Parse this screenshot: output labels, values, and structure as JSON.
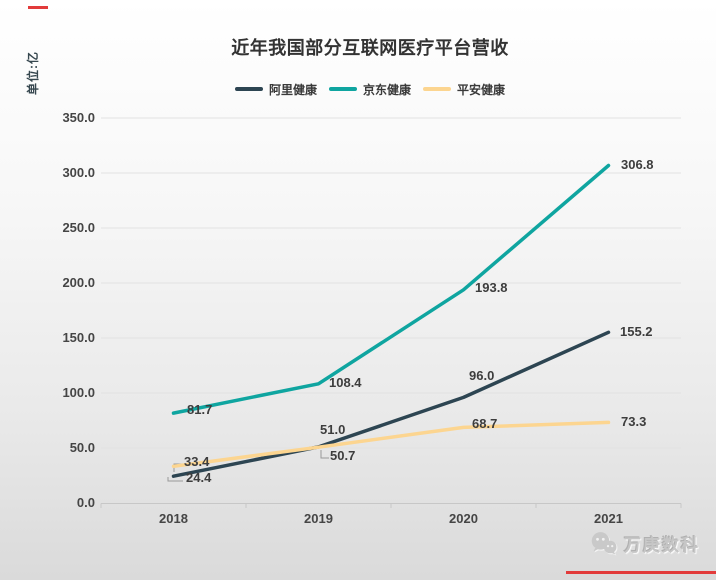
{
  "page": {
    "unit_label": "单位:亿",
    "watermark": "万庚数科",
    "accent_color": "#e23b3b"
  },
  "chart_data": {
    "type": "line",
    "title": "近年我国部分互联网医疗平台营收",
    "categories": [
      "2018",
      "2019",
      "2020",
      "2021"
    ],
    "series": [
      {
        "name": "阿里健康",
        "color": "#2d4552",
        "values": [
          24.4,
          51.0,
          96.0,
          155.2
        ]
      },
      {
        "name": "京东健康",
        "color": "#0fa5a0",
        "values": [
          81.7,
          108.4,
          193.8,
          306.8
        ]
      },
      {
        "name": "平安健康",
        "color": "#fcd590",
        "values": [
          33.4,
          50.7,
          68.7,
          73.3
        ]
      }
    ],
    "ylabel": "单位:亿",
    "ylim": [
      0,
      350
    ],
    "ytick_step": 50,
    "yticks": [
      "350.0",
      "300.0",
      "250.0",
      "200.0",
      "150.0",
      "100.0",
      "50.0",
      "0.0"
    ],
    "grid": true,
    "legend_position": "top",
    "data_labels": true
  }
}
